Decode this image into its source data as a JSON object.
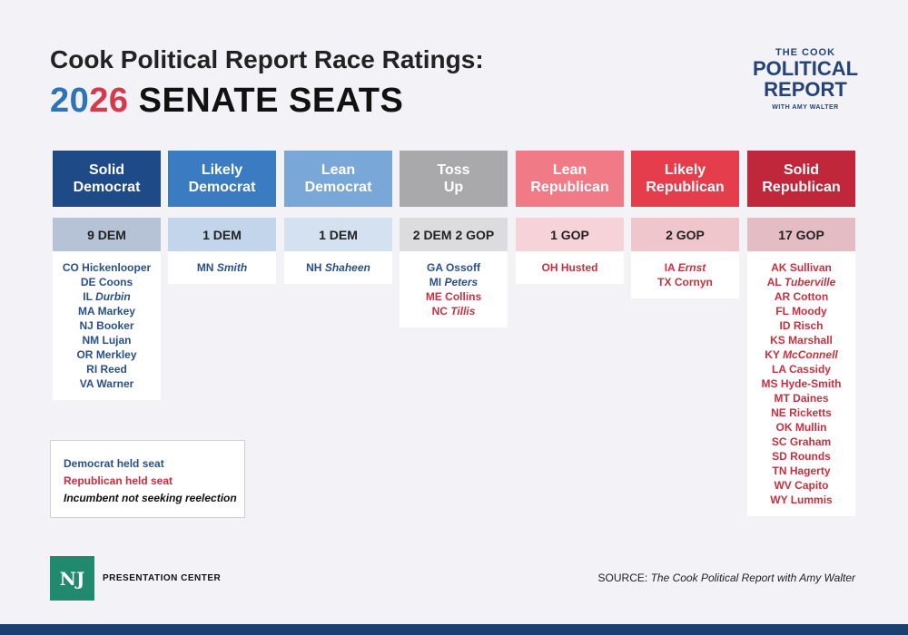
{
  "title": {
    "line1": "Cook Political Report Race Ratings:",
    "year_part1": "20",
    "year_part2": "26",
    "line2_rest": " SENATE SEATS"
  },
  "logo": {
    "line1": "THE COOK",
    "line2": "POLITICAL",
    "line3": "REPORT",
    "line4": "WITH AMY WALTER"
  },
  "columns": [
    {
      "label_l1": "Solid",
      "label_l2": "Democrat",
      "count": "9 DEM",
      "header_color": "#1e4a87",
      "count_color": "#b6c3d6",
      "seats": [
        {
          "state": "CO",
          "name": "Hickenlooper",
          "party": "dem",
          "retiring": false
        },
        {
          "state": "DE",
          "name": "Coons",
          "party": "dem",
          "retiring": false
        },
        {
          "state": "IL",
          "name": "Durbin",
          "party": "dem",
          "retiring": true
        },
        {
          "state": "MA",
          "name": "Markey",
          "party": "dem",
          "retiring": false
        },
        {
          "state": "NJ",
          "name": "Booker",
          "party": "dem",
          "retiring": false
        },
        {
          "state": "NM",
          "name": "Lujan",
          "party": "dem",
          "retiring": false
        },
        {
          "state": "OR",
          "name": "Merkley",
          "party": "dem",
          "retiring": false
        },
        {
          "state": "RI",
          "name": "Reed",
          "party": "dem",
          "retiring": false
        },
        {
          "state": "VA",
          "name": "Warner",
          "party": "dem",
          "retiring": false
        }
      ]
    },
    {
      "label_l1": "Likely",
      "label_l2": "Democrat",
      "count": "1 DEM",
      "header_color": "#3a7bc2",
      "count_color": "#c3d5ea",
      "seats": [
        {
          "state": "MN",
          "name": "Smith",
          "party": "dem",
          "retiring": true
        }
      ]
    },
    {
      "label_l1": "Lean",
      "label_l2": "Democrat",
      "count": "1 DEM",
      "header_color": "#79a8d8",
      "count_color": "#d3e1f1",
      "seats": [
        {
          "state": "NH",
          "name": "Shaheen",
          "party": "dem",
          "retiring": true
        }
      ]
    },
    {
      "label_l1": "Toss",
      "label_l2": "Up",
      "count": "2 DEM 2 GOP",
      "header_color": "#a9a9ab",
      "count_color": "#dcdcdf",
      "seats": [
        {
          "state": "GA",
          "name": "Ossoff",
          "party": "dem",
          "retiring": false
        },
        {
          "state": "MI",
          "name": "Peters",
          "party": "dem",
          "retiring": true
        },
        {
          "state": "ME",
          "name": "Collins",
          "party": "rep",
          "retiring": false
        },
        {
          "state": "NC",
          "name": "Tillis",
          "party": "rep",
          "retiring": true
        }
      ]
    },
    {
      "label_l1": "Lean",
      "label_l2": "Republican",
      "count": "1 GOP",
      "header_color": "#f07a86",
      "count_color": "#f5d3d8",
      "seats": [
        {
          "state": "OH",
          "name": "Husted",
          "party": "rep",
          "retiring": false
        }
      ]
    },
    {
      "label_l1": "Likely",
      "label_l2": "Republican",
      "count": "2 GOP",
      "header_color": "#e63d4d",
      "count_color": "#f0c6cd",
      "seats": [
        {
          "state": "IA",
          "name": "Ernst",
          "party": "rep",
          "retiring": true
        },
        {
          "state": "TX",
          "name": "Cornyn",
          "party": "rep",
          "retiring": false
        }
      ]
    },
    {
      "label_l1": "Solid",
      "label_l2": "Republican",
      "count": "17 GOP",
      "header_color": "#c1273b",
      "count_color": "#e3bcc4",
      "seats": [
        {
          "state": "AK",
          "name": "Sullivan",
          "party": "rep",
          "retiring": false
        },
        {
          "state": "AL",
          "name": "Tuberville",
          "party": "rep",
          "retiring": true
        },
        {
          "state": "AR",
          "name": "Cotton",
          "party": "rep",
          "retiring": false
        },
        {
          "state": "FL",
          "name": "Moody",
          "party": "rep",
          "retiring": false
        },
        {
          "state": "ID",
          "name": "Risch",
          "party": "rep",
          "retiring": false
        },
        {
          "state": "KS",
          "name": "Marshall",
          "party": "rep",
          "retiring": false
        },
        {
          "state": "KY",
          "name": "McConnell",
          "party": "rep",
          "retiring": true
        },
        {
          "state": "LA",
          "name": "Cassidy",
          "party": "rep",
          "retiring": false
        },
        {
          "state": "MS",
          "name": "Hyde-Smith",
          "party": "rep",
          "retiring": false
        },
        {
          "state": "MT",
          "name": "Daines",
          "party": "rep",
          "retiring": false
        },
        {
          "state": "NE",
          "name": "Ricketts",
          "party": "rep",
          "retiring": false
        },
        {
          "state": "OK",
          "name": "Mullin",
          "party": "rep",
          "retiring": false
        },
        {
          "state": "SC",
          "name": "Graham",
          "party": "rep",
          "retiring": false
        },
        {
          "state": "SD",
          "name": "Rounds",
          "party": "rep",
          "retiring": false
        },
        {
          "state": "TN",
          "name": "Hagerty",
          "party": "rep",
          "retiring": false
        },
        {
          "state": "WV",
          "name": "Capito",
          "party": "rep",
          "retiring": false
        },
        {
          "state": "WY",
          "name": "Lummis",
          "party": "rep",
          "retiring": false
        }
      ]
    }
  ],
  "legend": {
    "dem": "Democrat held seat",
    "rep": "Republican held seat",
    "retiring": "Incumbent not seeking reelection"
  },
  "footer": {
    "badge": "NJ",
    "org": "PRESENTATION CENTER",
    "source_label": "SOURCE:",
    "source_name": "The Cook Political Report with Amy Walter"
  }
}
